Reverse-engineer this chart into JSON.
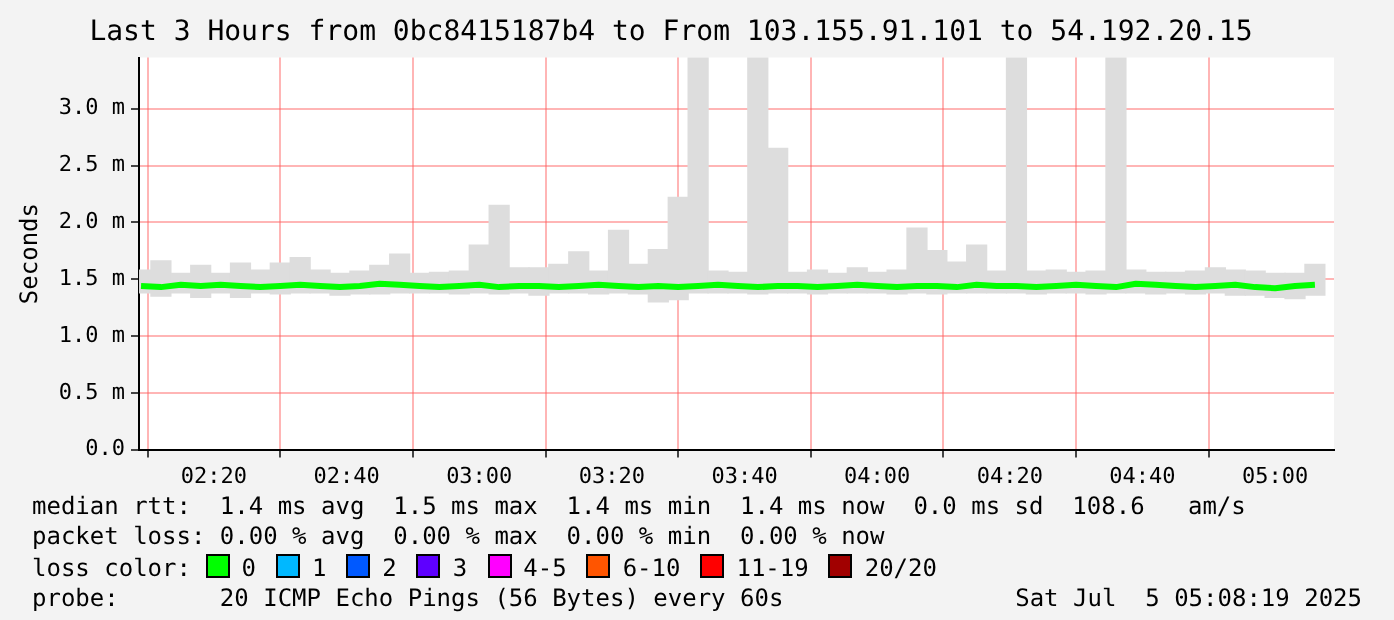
{
  "chart_data": {
    "type": "line",
    "title": "Last 3 Hours from 0bc8415187b4 to From 103.155.91.101 to 54.192.20.15",
    "ylabel": "Seconds",
    "x": [
      2.15,
      2.2,
      2.25,
      2.3,
      2.35,
      2.4,
      2.45,
      2.5,
      2.55,
      2.6,
      2.65,
      2.7,
      2.75,
      2.8,
      2.85,
      2.9,
      2.95,
      3.0,
      3.05,
      3.1,
      3.15,
      3.2,
      3.25,
      3.3,
      3.35,
      3.4,
      3.45,
      3.5,
      3.55,
      3.6,
      3.65,
      3.7,
      3.75,
      3.8,
      3.85,
      3.9,
      3.95,
      4.0,
      4.05,
      4.1,
      4.15,
      4.2,
      4.25,
      4.3,
      4.35,
      4.4,
      4.45,
      4.5,
      4.55,
      4.6,
      4.65,
      4.7,
      4.75,
      4.8,
      4.85,
      4.9,
      4.95,
      5.0,
      5.05,
      5.1
    ],
    "series": [
      {
        "type": "bar",
        "color": "#dddddd",
        "base": [
          1.38,
          1.35,
          1.38,
          1.34,
          1.38,
          1.34,
          1.38,
          1.37,
          1.38,
          1.38,
          1.36,
          1.37,
          1.37,
          1.38,
          1.38,
          1.38,
          1.37,
          1.38,
          1.37,
          1.38,
          1.36,
          1.38,
          1.38,
          1.37,
          1.38,
          1.37,
          1.3,
          1.32,
          1.38,
          1.38,
          1.38,
          1.37,
          1.38,
          1.38,
          1.37,
          1.38,
          1.38,
          1.38,
          1.37,
          1.38,
          1.37,
          1.38,
          1.38,
          1.38,
          1.38,
          1.37,
          1.38,
          1.38,
          1.37,
          1.38,
          1.38,
          1.37,
          1.38,
          1.37,
          1.38,
          1.36,
          1.36,
          1.34,
          1.33,
          1.36
        ],
        "values": [
          0.2,
          0.31,
          0.17,
          0.28,
          0.17,
          0.3,
          0.2,
          0.27,
          0.31,
          0.2,
          0.19,
          0.2,
          0.25,
          0.34,
          0.17,
          0.18,
          0.2,
          0.42,
          0.78,
          0.22,
          0.24,
          0.25,
          0.36,
          0.2,
          0.55,
          0.26,
          0.46,
          0.9,
          2.07,
          0.19,
          0.18,
          2.08,
          1.27,
          0.18,
          0.21,
          0.17,
          0.22,
          0.18,
          0.21,
          0.57,
          0.38,
          0.27,
          0.42,
          0.19,
          2.07,
          0.2,
          0.2,
          0.18,
          0.2,
          2.07,
          0.2,
          0.19,
          0.18,
          0.2,
          0.22,
          0.22,
          0.21,
          0.21,
          0.22,
          0.27
        ]
      },
      {
        "name": "0",
        "color": "#00ff00",
        "values": [
          1.44,
          1.43,
          1.45,
          1.44,
          1.45,
          1.44,
          1.43,
          1.44,
          1.45,
          1.44,
          1.43,
          1.44,
          1.46,
          1.45,
          1.44,
          1.43,
          1.44,
          1.45,
          1.43,
          1.44,
          1.44,
          1.43,
          1.44,
          1.45,
          1.44,
          1.43,
          1.44,
          1.43,
          1.44,
          1.45,
          1.44,
          1.43,
          1.44,
          1.44,
          1.43,
          1.44,
          1.45,
          1.44,
          1.43,
          1.44,
          1.44,
          1.43,
          1.45,
          1.44,
          1.44,
          1.43,
          1.44,
          1.45,
          1.44,
          1.43,
          1.46,
          1.45,
          1.44,
          1.43,
          1.44,
          1.45,
          1.43,
          1.42,
          1.44,
          1.45
        ]
      },
      {
        "name": "1",
        "color": "#00b8ff",
        "values": [
          null,
          null,
          null,
          null,
          null,
          null,
          null,
          null,
          null,
          null,
          null,
          null,
          null,
          null,
          null,
          null,
          null,
          null,
          null,
          null,
          null,
          null,
          null,
          null,
          null,
          null,
          null,
          null,
          null,
          null,
          null,
          null,
          null,
          null,
          null,
          null,
          null,
          null,
          null,
          null,
          null,
          null,
          null,
          null,
          null,
          null,
          null,
          null,
          null,
          null,
          null,
          null,
          null,
          null,
          null,
          null,
          null,
          null,
          null,
          null
        ]
      },
      {
        "name": "2",
        "color": "#0059ff",
        "values": [
          null,
          null,
          null,
          null,
          null,
          null,
          null,
          null,
          null,
          null,
          null,
          null,
          null,
          null,
          null,
          null,
          null,
          null,
          null,
          null,
          null,
          null,
          null,
          null,
          null,
          null,
          null,
          null,
          null,
          null,
          null,
          null,
          null,
          null,
          null,
          null,
          null,
          null,
          null,
          null,
          null,
          null,
          null,
          null,
          null,
          null,
          null,
          null,
          null,
          null,
          null,
          null,
          null,
          null,
          null,
          null,
          null,
          null,
          null,
          null
        ]
      },
      {
        "name": "3",
        "color": "#5e00ff",
        "values": [
          null,
          null,
          null,
          null,
          null,
          null,
          null,
          null,
          null,
          null,
          null,
          null,
          null,
          null,
          null,
          null,
          null,
          null,
          null,
          null,
          null,
          null,
          null,
          null,
          null,
          null,
          null,
          null,
          null,
          null,
          null,
          null,
          null,
          null,
          null,
          null,
          null,
          null,
          null,
          null,
          null,
          null,
          null,
          null,
          null,
          null,
          null,
          null,
          null,
          null,
          null,
          null,
          null,
          null,
          null,
          null,
          null,
          null,
          null,
          null
        ]
      },
      {
        "name": "4-5",
        "color": "#ff00ff",
        "values": [
          null,
          null,
          null,
          null,
          null,
          null,
          null,
          null,
          null,
          null,
          null,
          null,
          null,
          null,
          null,
          null,
          null,
          null,
          null,
          null,
          null,
          null,
          null,
          null,
          null,
          null,
          null,
          null,
          null,
          null,
          null,
          null,
          null,
          null,
          null,
          null,
          null,
          null,
          null,
          null,
          null,
          null,
          null,
          null,
          null,
          null,
          null,
          null,
          null,
          null,
          null,
          null,
          null,
          null,
          null,
          null,
          null,
          null,
          null,
          null
        ]
      },
      {
        "name": "6-10",
        "color": "#ff5500",
        "values": [
          null,
          null,
          null,
          null,
          null,
          null,
          null,
          null,
          null,
          null,
          null,
          null,
          null,
          null,
          null,
          null,
          null,
          null,
          null,
          null,
          null,
          null,
          null,
          null,
          null,
          null,
          null,
          null,
          null,
          null,
          null,
          null,
          null,
          null,
          null,
          null,
          null,
          null,
          null,
          null,
          null,
          null,
          null,
          null,
          null,
          null,
          null,
          null,
          null,
          null,
          null,
          null,
          null,
          null,
          null,
          null,
          null,
          null,
          null,
          null
        ]
      },
      {
        "name": "11-19",
        "color": "#ff0000",
        "values": [
          null,
          null,
          null,
          null,
          null,
          null,
          null,
          null,
          null,
          null,
          null,
          null,
          null,
          null,
          null,
          null,
          null,
          null,
          null,
          null,
          null,
          null,
          null,
          null,
          null,
          null,
          null,
          null,
          null,
          null,
          null,
          null,
          null,
          null,
          null,
          null,
          null,
          null,
          null,
          null,
          null,
          null,
          null,
          null,
          null,
          null,
          null,
          null,
          null,
          null,
          null,
          null,
          null,
          null,
          null,
          null,
          null,
          null,
          null,
          null
        ]
      },
      {
        "name": "20/20",
        "color": "#a10000",
        "values": [
          null,
          null,
          null,
          null,
          null,
          null,
          null,
          null,
          null,
          null,
          null,
          null,
          null,
          null,
          null,
          null,
          null,
          null,
          null,
          null,
          null,
          null,
          null,
          null,
          null,
          null,
          null,
          null,
          null,
          null,
          null,
          null,
          null,
          null,
          null,
          null,
          null,
          null,
          null,
          null,
          null,
          null,
          null,
          null,
          null,
          null,
          null,
          null,
          null,
          null,
          null,
          null,
          null,
          null,
          null,
          null,
          null,
          null,
          null,
          null
        ]
      }
    ],
    "legend": "bottom",
    "legend_title": "loss color:",
    "grid": true,
    "xlim": [
      2.145,
      5.148
    ],
    "xticks": [
      {
        "value": 2.3333,
        "label": "02:20"
      },
      {
        "value": 2.6667,
        "label": "02:40"
      },
      {
        "value": 3,
        "label": "03:00"
      },
      {
        "value": 3.3333,
        "label": "03:20"
      },
      {
        "value": 3.6667,
        "label": "03:40"
      },
      {
        "value": 4,
        "label": "04:00"
      },
      {
        "value": 4.3333,
        "label": "04:20"
      },
      {
        "value": 4.6667,
        "label": "04:40"
      },
      {
        "value": 5,
        "label": "05:00"
      }
    ],
    "ylim": [
      0,
      3.45
    ],
    "yticks": [
      {
        "value": 0,
        "label": "0.0"
      },
      {
        "value": 0.5,
        "label": "0.5 m"
      },
      {
        "value": 1,
        "label": "1.0 m"
      },
      {
        "value": 1.5,
        "label": "1.5 m"
      },
      {
        "value": 2,
        "label": "2.0 m"
      },
      {
        "value": 2.5,
        "label": "2.5 m"
      },
      {
        "value": 3,
        "label": "3.0 m"
      }
    ],
    "annotations": [
      "median rtt:  1.4 ms avg  1.5 ms max  1.4 ms min  1.4 ms now  0.0 ms sd  108.6   am/s",
      "packet loss: 0.00 % avg  0.00 % max  0.00 % min  0.00 % now",
      "probe:       20 ICMP Echo Pings (56 Bytes) every 60s",
      "Sat Jul  5 05:08:19 2025"
    ]
  }
}
